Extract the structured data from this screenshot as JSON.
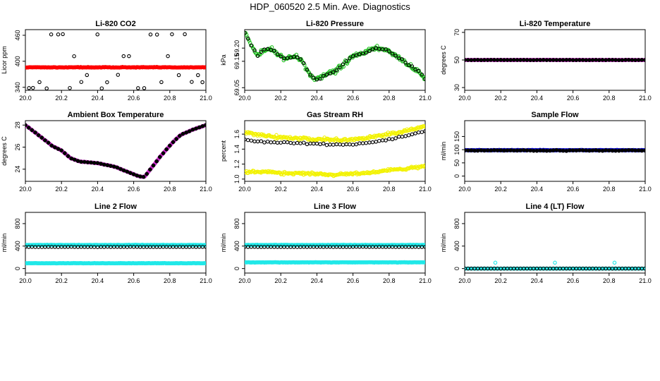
{
  "page_title": "HDP_060520  2.5 Min. Ave. Diagnostics",
  "colors": {
    "black": "#000000",
    "red": "#ff0000",
    "green": "#22c322",
    "magenta": "#d030d0",
    "yellow": "#f2f200",
    "blue": "#0000c8",
    "cyan": "#20e8e8"
  },
  "chart_data": [
    {
      "type": "scatter",
      "title": "Li-820 CO2",
      "ylabel": "Licor ppm",
      "xlim": [
        20.0,
        21.0
      ],
      "ylim": [
        333,
        473
      ],
      "x_ticks": [
        "20.0",
        "20.2",
        "20.4",
        "20.6",
        "20.8",
        "21.0"
      ],
      "y_ticks": [
        {
          "v": 340,
          "label": "340"
        },
        {
          "v": 400,
          "label": "400"
        },
        {
          "v": 460,
          "label": "460"
        }
      ],
      "series": [
        {
          "name": "Li-820 CO2 (black)",
          "color": "black",
          "style": "open",
          "gen": "co2_black"
        },
        {
          "name": "Li-820 CO2 (red)",
          "color": "red",
          "style": "filled",
          "gen": "flat",
          "base": 386,
          "noise": 1
        }
      ]
    },
    {
      "type": "scatter",
      "title": "Li-820 Pressure",
      "ylabel": "kPa",
      "xlim": [
        20.0,
        21.0
      ],
      "ylim": [
        69.04,
        69.27
      ],
      "x_ticks": [
        "20.0",
        "20.2",
        "20.4",
        "20.6",
        "20.8",
        "21.0"
      ],
      "y_ticks": [
        {
          "v": 69.05,
          "label": "69.05"
        },
        {
          "v": 69.15,
          "label": "69.15"
        },
        {
          "v": 69.2,
          "label": "69.20"
        }
      ],
      "series": [
        {
          "name": "Li-820 Pressure (green)",
          "color": "green",
          "style": "open",
          "gen": "pressure",
          "noise": 0.012
        },
        {
          "name": "Li-820 Pressure (black)",
          "color": "black",
          "style": "open",
          "gen": "pressure_black",
          "noise": 0.006
        }
      ]
    },
    {
      "type": "scatter",
      "title": "Li-820 Temperature",
      "ylabel": "degrees C",
      "xlim": [
        20.0,
        21.0
      ],
      "ylim": [
        28,
        72
      ],
      "x_ticks": [
        "20.0",
        "20.2",
        "20.4",
        "20.6",
        "20.8",
        "21.0"
      ],
      "y_ticks": [
        {
          "v": 30,
          "label": "30"
        },
        {
          "v": 50,
          "label": "50"
        },
        {
          "v": 70,
          "label": "70"
        }
      ],
      "series": [
        {
          "name": "Li-820 Temperature (magenta)",
          "color": "magenta",
          "style": "filled",
          "gen": "flat",
          "base": 50,
          "noise": 0.2
        },
        {
          "name": "Li-820 Temperature (black)",
          "color": "black",
          "style": "filled",
          "gen": "flat_sparse",
          "base": 50,
          "noise": 0.1
        }
      ]
    },
    {
      "type": "scatter",
      "title": "Ambient Box Temperature",
      "ylabel": "degrees C",
      "xlim": [
        20.0,
        21.0
      ],
      "ylim": [
        22.9,
        28.4
      ],
      "x_ticks": [
        "20.0",
        "20.2",
        "20.4",
        "20.6",
        "20.8",
        "21.0"
      ],
      "y_ticks": [
        {
          "v": 24,
          "label": "24"
        },
        {
          "v": 26,
          "label": "26"
        },
        {
          "v": 28,
          "label": "28"
        }
      ],
      "series": [
        {
          "name": "Ambient Box Temperature (magenta)",
          "color": "magenta",
          "style": "filled",
          "gen": "abt",
          "noise": 0.03
        },
        {
          "name": "Ambient Box Temperature (black)",
          "color": "black",
          "style": "filled",
          "gen": "abt_sparse",
          "noise": 0.02
        }
      ]
    },
    {
      "type": "scatter",
      "title": "Gas Stream RH",
      "ylabel": "percent",
      "xlim": [
        20.0,
        21.0
      ],
      "ylim": [
        0.97,
        1.78
      ],
      "x_ticks": [
        "20.0",
        "20.2",
        "20.4",
        "20.6",
        "20.8",
        "21.0"
      ],
      "y_ticks": [
        {
          "v": 1.0,
          "label": "1.0"
        },
        {
          "v": 1.2,
          "label": "1.2"
        },
        {
          "v": 1.4,
          "label": "1.4"
        },
        {
          "v": 1.6,
          "label": "1.6"
        }
      ],
      "series": [
        {
          "name": "Gas Stream RH upper (yellow)",
          "color": "yellow",
          "style": "open",
          "gen": "rh_upper",
          "noise": 0.03
        },
        {
          "name": "Gas Stream RH lower (yellow)",
          "color": "yellow",
          "style": "open",
          "gen": "rh_lower",
          "noise": 0.025
        },
        {
          "name": "Gas Stream RH (black)",
          "color": "black",
          "style": "open",
          "gen": "rh_black",
          "noise": 0.015
        }
      ]
    },
    {
      "type": "scatter",
      "title": "Sample Flow",
      "ylabel": "ml/min",
      "xlim": [
        20.0,
        21.0
      ],
      "ylim": [
        -20,
        210
      ],
      "x_ticks": [
        "20.0",
        "20.2",
        "20.4",
        "20.6",
        "20.8",
        "21.0"
      ],
      "y_ticks": [
        {
          "v": 0,
          "label": "0"
        },
        {
          "v": 50,
          "label": "50"
        },
        {
          "v": 100,
          "label": "100"
        },
        {
          "v": 150,
          "label": "150"
        }
      ],
      "series": [
        {
          "name": "Sample Flow (blue)",
          "color": "blue",
          "style": "filled",
          "gen": "flat",
          "base": 98,
          "noise": 1.5
        },
        {
          "name": "Sample Flow (black)",
          "color": "black",
          "style": "filled",
          "gen": "flat_sparse",
          "base": 97,
          "noise": 2
        }
      ]
    },
    {
      "type": "scatter",
      "title": "Line 2 Flow",
      "ylabel": "ml/min",
      "xlim": [
        20.0,
        21.0
      ],
      "ylim": [
        -80,
        1000
      ],
      "x_ticks": [
        "20.0",
        "20.2",
        "20.4",
        "20.6",
        "20.8",
        "21.0"
      ],
      "y_ticks": [
        {
          "v": 0,
          "label": "0"
        },
        {
          "v": 400,
          "label": "400"
        },
        {
          "v": 800,
          "label": "800"
        }
      ],
      "series": [
        {
          "name": "Line 2 Flow upper (cyan)",
          "color": "cyan",
          "style": "filled",
          "gen": "flat",
          "base": 420,
          "noise": 4
        },
        {
          "name": "Line 2 Flow lower (cyan)",
          "color": "cyan",
          "style": "filled",
          "gen": "flat",
          "base": 95,
          "noise": 4
        },
        {
          "name": "Line 2 Flow (black)",
          "color": "black",
          "style": "open",
          "gen": "flat_sparse",
          "base": 385,
          "noise": 3
        }
      ]
    },
    {
      "type": "scatter",
      "title": "Line 3 Flow",
      "ylabel": "ml/min",
      "xlim": [
        20.0,
        21.0
      ],
      "ylim": [
        -80,
        1000
      ],
      "x_ticks": [
        "20.0",
        "20.2",
        "20.4",
        "20.6",
        "20.8",
        "21.0"
      ],
      "y_ticks": [
        {
          "v": 0,
          "label": "0"
        },
        {
          "v": 400,
          "label": "400"
        },
        {
          "v": 800,
          "label": "800"
        }
      ],
      "series": [
        {
          "name": "Line 3 Flow upper (cyan)",
          "color": "cyan",
          "style": "filled",
          "gen": "flat",
          "base": 420,
          "noise": 4
        },
        {
          "name": "Line 3 Flow lower (cyan)",
          "color": "cyan",
          "style": "filled",
          "gen": "flat",
          "base": 110,
          "noise": 4
        },
        {
          "name": "Line 3 Flow (black)",
          "color": "black",
          "style": "open",
          "gen": "flat_sparse",
          "base": 385,
          "noise": 3
        }
      ]
    },
    {
      "type": "scatter",
      "title": "Line 4 (LT) Flow",
      "ylabel": "ml/min",
      "xlim": [
        20.0,
        21.0
      ],
      "ylim": [
        -80,
        1000
      ],
      "x_ticks": [
        "20.0",
        "20.2",
        "20.4",
        "20.6",
        "20.8",
        "21.0"
      ],
      "y_ticks": [
        {
          "v": 0,
          "label": "0"
        },
        {
          "v": 400,
          "label": "400"
        },
        {
          "v": 800,
          "label": "800"
        }
      ],
      "series": [
        {
          "name": "Line 4 (LT) Flow (cyan)",
          "color": "cyan",
          "style": "open",
          "gen": "flat",
          "base": 0,
          "noise": 0.5
        },
        {
          "name": "Line 4 (LT) Flow (black)",
          "color": "black",
          "style": "open",
          "gen": "flat_sparse",
          "base": 0,
          "noise": 0.5
        },
        {
          "name": "Line 4 (LT) Flow spikes (cyan)",
          "color": "cyan",
          "style": "open",
          "gen": "points",
          "x": [
            20.17,
            20.5,
            20.83
          ],
          "y": [
            105,
            105,
            105
          ]
        }
      ]
    }
  ]
}
